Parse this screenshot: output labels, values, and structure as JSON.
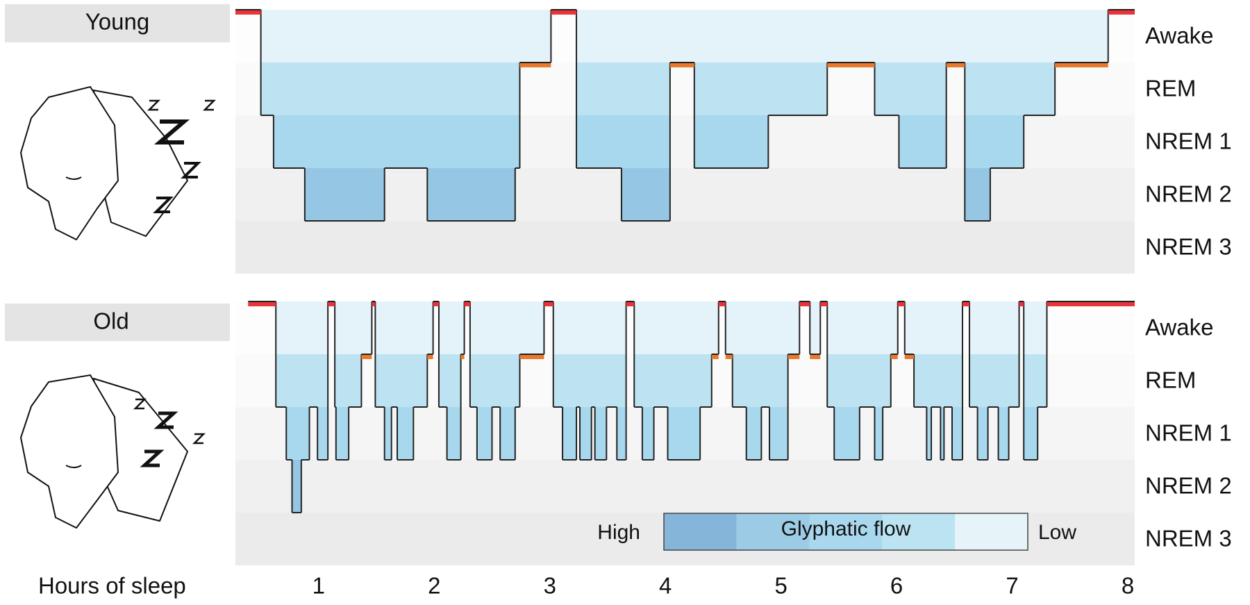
{
  "chart_data": [
    {
      "type": "step",
      "title": "Young",
      "stages": [
        "Awake",
        "REM",
        "NREM 1",
        "NREM 2",
        "NREM 3"
      ],
      "stage_colors": [
        "#e8343a",
        "#e87a2e",
        "#bfe4f3",
        "#9ccde6",
        "#86b9dc"
      ],
      "flow_colors": [
        "#e4f3fa",
        "#bde3f2",
        "#a8d8ee",
        "#95c6e3",
        "#85b6da"
      ],
      "band_colors": [
        "#fdfdfd",
        "#fafafa",
        "#f5f5f5",
        "#f0f0f0",
        "#ebebeb"
      ],
      "xlim": [
        0.28,
        8.06
      ],
      "x": [
        0.28,
        0.5,
        0.61,
        0.88,
        1.57,
        1.94,
        2.7,
        2.74,
        3.01,
        3.23,
        3.62,
        4.04,
        4.25,
        4.89,
        5.4,
        5.81,
        6.02,
        6.43,
        6.59,
        6.81,
        7.1,
        7.37,
        7.83
      ],
      "values": [
        "Awake",
        "NREM 1",
        "NREM 2",
        "NREM 3",
        "NREM 2",
        "NREM 3",
        "NREM 2",
        "REM",
        "Awake",
        "NREM 2",
        "NREM 3",
        "REM",
        "NREM 2",
        "NREM 1",
        "REM",
        "NREM 1",
        "NREM 2",
        "REM",
        "NREM 3",
        "NREM 2",
        "NREM 1",
        "REM",
        "Awake"
      ]
    },
    {
      "type": "step",
      "title": "Old",
      "stages": [
        "Awake",
        "REM",
        "NREM 1",
        "NREM 2",
        "NREM 3"
      ],
      "stage_colors": [
        "#e8343a",
        "#e87a2e",
        "#bfe4f3",
        "#9ccde6",
        "#86b9dc"
      ],
      "flow_colors": [
        "#e4f3fa",
        "#bde3f2",
        "#a8d8ee",
        "#95c6e3",
        "#85b6da"
      ],
      "band_colors": [
        "#fdfdfd",
        "#fafafa",
        "#f5f5f5",
        "#f0f0f0",
        "#ebebeb"
      ],
      "xlim": [
        0.28,
        8.06
      ],
      "xticks": [
        1,
        2,
        3,
        4,
        5,
        6,
        7,
        8
      ],
      "x_label": "Hours of sleep",
      "x": [
        0.39,
        0.63,
        0.72,
        0.77,
        0.85,
        0.92,
        0.99,
        1.08,
        1.14,
        1.15,
        1.26,
        1.37,
        1.46,
        1.49,
        1.57,
        1.63,
        1.68,
        1.82,
        1.94,
        1.99,
        2.04,
        2.11,
        2.23,
        2.26,
        2.31,
        2.37,
        2.5,
        2.57,
        2.7,
        2.74,
        2.95,
        3.03,
        3.11,
        3.23,
        3.26,
        3.36,
        3.39,
        3.49,
        3.58,
        3.66,
        3.73,
        3.8,
        3.9,
        4.02,
        4.3,
        4.4,
        4.46,
        4.52,
        4.58,
        4.7,
        4.83,
        4.9,
        5.06,
        5.16,
        5.25,
        5.34,
        5.4,
        5.46,
        5.68,
        5.81,
        5.88,
        5.95,
        6.01,
        6.07,
        6.15,
        6.26,
        6.3,
        6.38,
        6.41,
        6.48,
        6.57,
        6.63,
        6.7,
        6.79,
        6.88,
        6.97,
        7.06,
        7.1,
        7.22,
        7.3
      ],
      "values": [
        "Awake",
        "NREM 1",
        "NREM 2",
        "NREM 3",
        "NREM 2",
        "NREM 1",
        "NREM 2",
        "Awake",
        "NREM 1",
        "NREM 2",
        "NREM 1",
        "REM",
        "Awake",
        "NREM 1",
        "NREM 2",
        "NREM 1",
        "NREM 2",
        "NREM 1",
        "REM",
        "Awake",
        "NREM 1",
        "NREM 2",
        "REM",
        "Awake",
        "NREM 1",
        "NREM 2",
        "NREM 1",
        "NREM 2",
        "NREM 1",
        "REM",
        "Awake",
        "NREM 1",
        "NREM 2",
        "NREM 1",
        "NREM 2",
        "NREM 1",
        "NREM 2",
        "NREM 1",
        "NREM 2",
        "Awake",
        "NREM 1",
        "NREM 2",
        "NREM 1",
        "NREM 2",
        "NREM 1",
        "REM",
        "Awake",
        "REM",
        "NREM 1",
        "NREM 2",
        "NREM 1",
        "NREM 2",
        "REM",
        "Awake",
        "REM",
        "Awake",
        "NREM 1",
        "NREM 2",
        "NREM 1",
        "NREM 2",
        "NREM 1",
        "REM",
        "Awake",
        "REM",
        "NREM 1",
        "NREM 2",
        "NREM 1",
        "NREM 2",
        "NREM 1",
        "NREM 2",
        "Awake",
        "NREM 1",
        "NREM 2",
        "NREM 1",
        "NREM 2",
        "NREM 1",
        "Awake",
        "NREM 2",
        "NREM 1",
        "Awake"
      ],
      "legend": {
        "high": "High",
        "title": "Glyphatic flow",
        "low": "Low",
        "colors": [
          "#85b6da",
          "#9ccbe6",
          "#a9d8ee",
          "#bce3f2",
          "#e6f4fa"
        ]
      }
    }
  ]
}
